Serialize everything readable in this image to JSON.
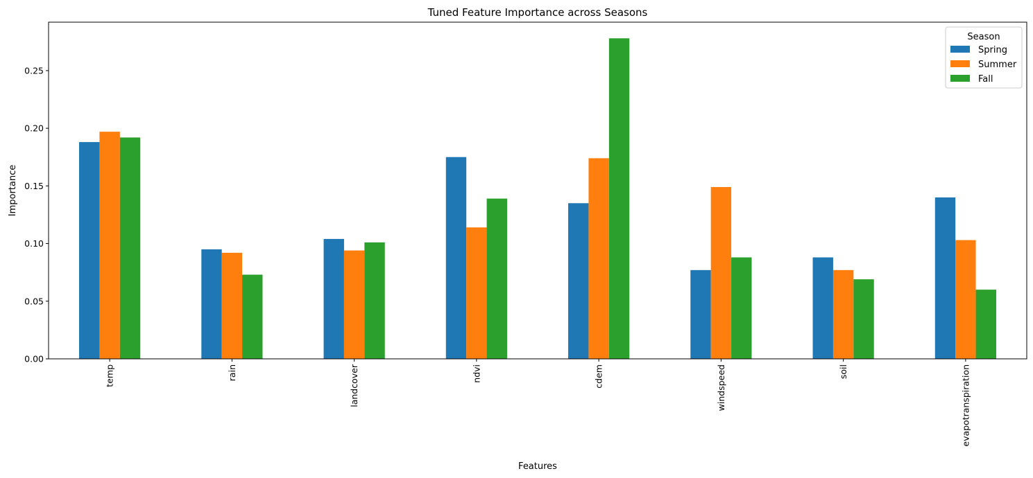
{
  "chart_data": {
    "type": "bar",
    "title": "Tuned Feature Importance across Seasons",
    "xlabel": "Features",
    "ylabel": "Importance",
    "categories": [
      "temp",
      "rain",
      "landcover",
      "ndvi",
      "cdem",
      "windspeed",
      "soil",
      "evapotranspiration"
    ],
    "series": [
      {
        "name": "Spring",
        "color": "#1f77b4",
        "values": [
          0.188,
          0.095,
          0.104,
          0.175,
          0.135,
          0.077,
          0.088,
          0.14
        ]
      },
      {
        "name": "Summer",
        "color": "#ff7f0e",
        "values": [
          0.197,
          0.092,
          0.094,
          0.114,
          0.174,
          0.149,
          0.077,
          0.103
        ]
      },
      {
        "name": "Fall",
        "color": "#2ca02c",
        "values": [
          0.192,
          0.073,
          0.101,
          0.139,
          0.278,
          0.088,
          0.069,
          0.06
        ]
      }
    ],
    "ylim": [
      0,
      0.292
    ],
    "yticks": [
      "0.00",
      "0.05",
      "0.10",
      "0.15",
      "0.20",
      "0.25"
    ],
    "legend": {
      "title": "Season",
      "position": "top-right"
    },
    "grid": false
  }
}
